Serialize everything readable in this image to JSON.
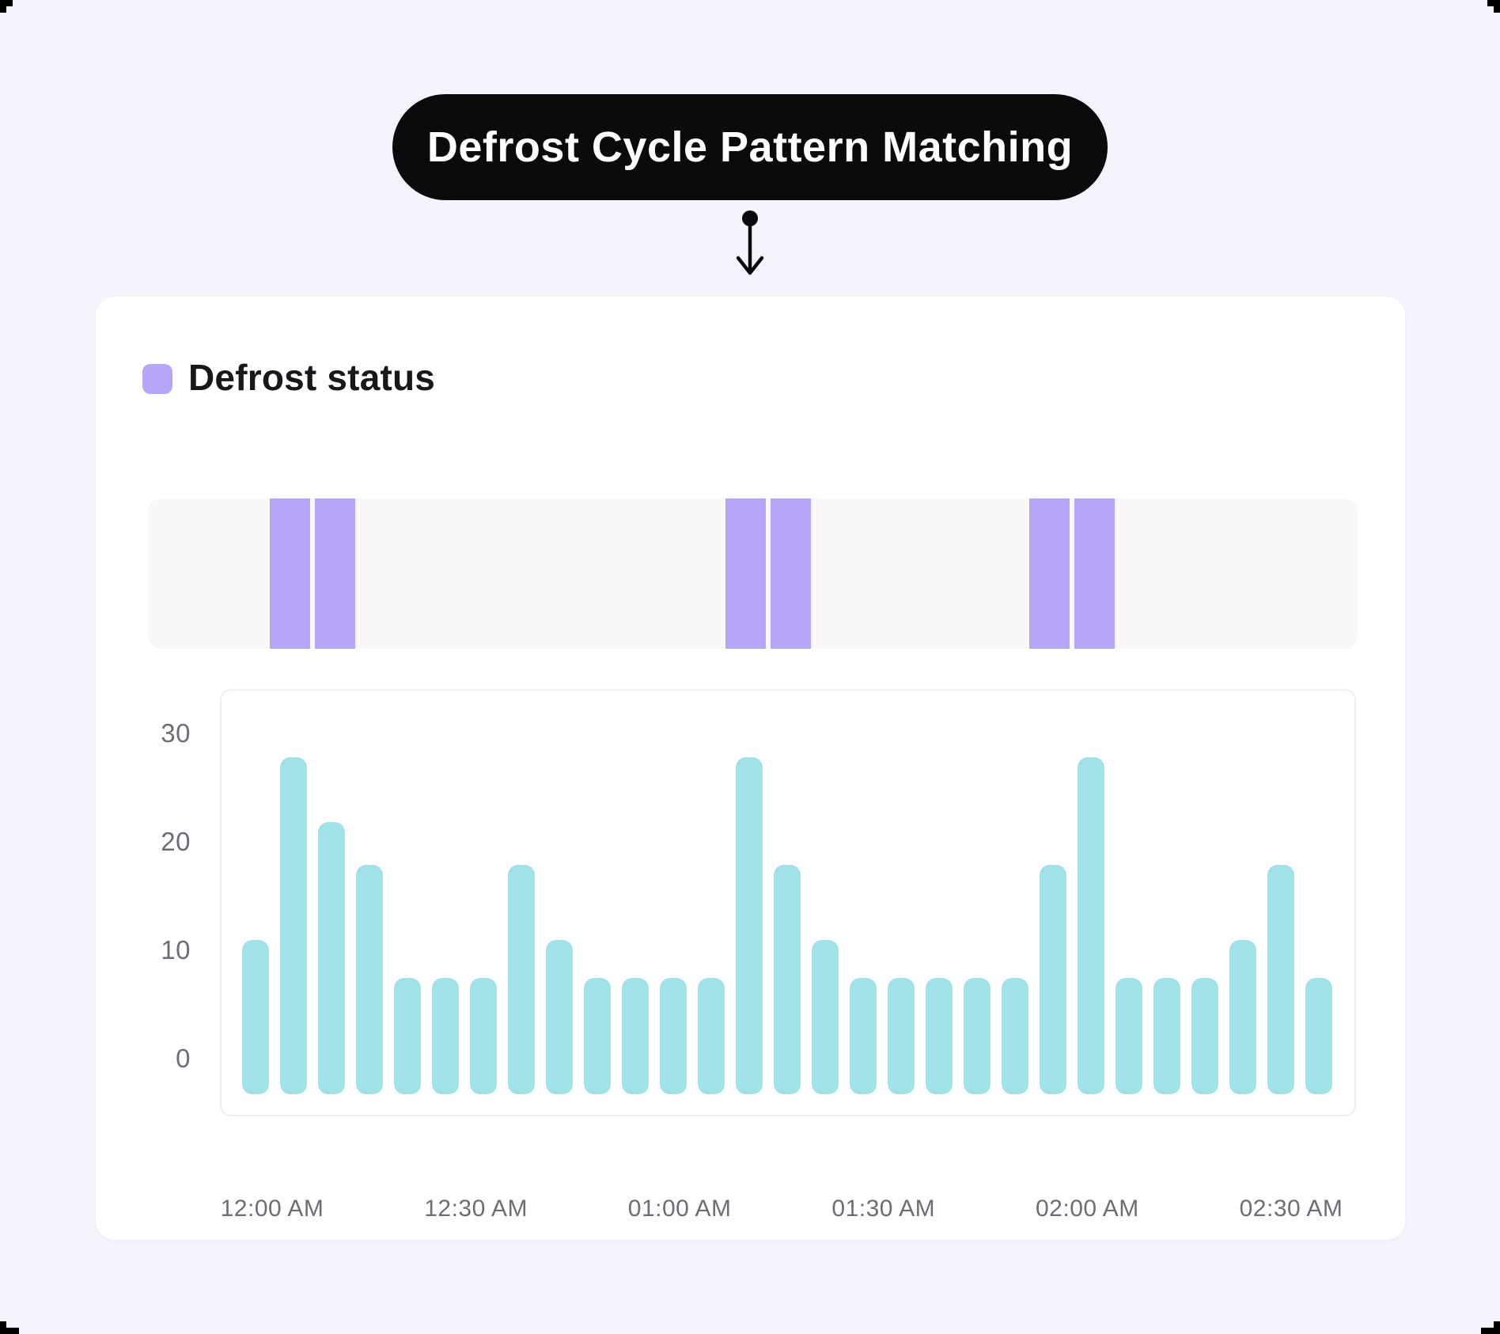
{
  "title": "Defrost Cycle Pattern Matching",
  "legend": {
    "label": "Defrost status"
  },
  "colors": {
    "page_bg": "#f5f4fc",
    "card_bg": "#ffffff",
    "pill_bg": "#0b0b0e",
    "pill_text": "#ffffff",
    "accent_purple": "#b7a6f8",
    "bar_teal": "#a1e1e8",
    "strip_bg": "#f8f8fa",
    "panel_border": "#eeeef2",
    "axis_text": "#6b6e76"
  },
  "chart_data": {
    "type": "bar",
    "title": "Defrost Cycle Pattern Matching",
    "legend_entries": [
      "Defrost status"
    ],
    "legend_position": "top-left",
    "grid": false,
    "start_time": "12:00 AM",
    "bar_interval_minutes": 5,
    "x_tick_labels": [
      "12:00 AM",
      "12:30 AM",
      "01:00 AM",
      "01:30 AM",
      "02:00 AM",
      "02:30 AM"
    ],
    "y_ticks_display": [
      "30",
      "20",
      "10",
      "0"
    ],
    "y_ticks": [
      0,
      10,
      20,
      30
    ],
    "ylim": [
      0,
      30
    ],
    "values": [
      11,
      28,
      22,
      18,
      7.5,
      7.5,
      7.5,
      18,
      11,
      7.5,
      7.5,
      7.5,
      7.5,
      28,
      18,
      11,
      7.5,
      7.5,
      7.5,
      7.5,
      7.5,
      18,
      28,
      7.5,
      7.5,
      7.5,
      11,
      18,
      7.5
    ],
    "defrost_band_pairs": [
      [
        1,
        2
      ],
      [
        13,
        14
      ],
      [
        21,
        22
      ]
    ]
  }
}
